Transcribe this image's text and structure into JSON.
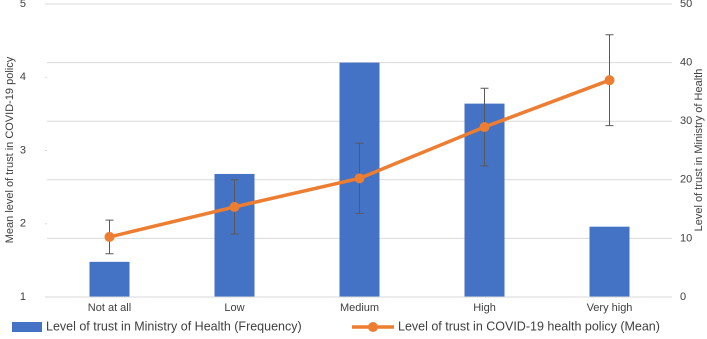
{
  "chart_data": {
    "type": "bar+line",
    "categories": [
      "Not at all",
      "Low",
      "Medium",
      "High",
      "Very high"
    ],
    "ylabel": "Mean level of trust in COVID-19 policy",
    "y2label": "Level of trust in Ministry of Health",
    "ylim": [
      1,
      5
    ],
    "yticks": [
      1,
      2,
      3,
      4,
      5
    ],
    "y2lim": [
      0,
      50
    ],
    "y2ticks": [
      0,
      10,
      20,
      30,
      40,
      50
    ],
    "grid": true,
    "legend": "bottom",
    "series": [
      {
        "name": "Level of trust in Ministry of Health (Frequency)",
        "type": "bar",
        "axis": "y2",
        "color": "#4472c4",
        "values": [
          6,
          21,
          40,
          33,
          12
        ]
      },
      {
        "name": "Level of trust in COVID-19 health policy (Mean)",
        "type": "line",
        "color": "#ed7d31",
        "values": [
          1.82,
          2.23,
          2.62,
          3.32,
          3.96
        ],
        "errors": [
          0.23,
          0.37,
          0.48,
          0.53,
          0.62
        ]
      }
    ]
  }
}
